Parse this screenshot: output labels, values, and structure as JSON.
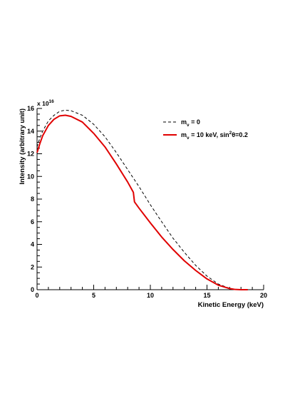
{
  "chart_data": {
    "type": "line",
    "xlabel": "Kinetic Energy (keV)",
    "ylabel": "Intensity (arbitrary unit)",
    "y_multiplier": {
      "base": "x 10",
      "exponent": "16"
    },
    "xlim": [
      0,
      20
    ],
    "ylim": [
      0,
      16
    ],
    "x_ticks": [
      "0",
      "5",
      "10",
      "15",
      "20"
    ],
    "y_ticks": [
      "0",
      "2",
      "4",
      "6",
      "8",
      "10",
      "12",
      "14",
      "16"
    ],
    "grid": false,
    "legend_position": "top-right",
    "legend": [
      {
        "id": "massless",
        "base": "m",
        "sub": "ν",
        "rest": " = 0"
      },
      {
        "id": "sterile",
        "base": "m",
        "sub": "ν",
        "rest1": " = 10 keV, sin",
        "sup": "2",
        "rest2": "θ=0.2"
      }
    ],
    "series": [
      {
        "id": "massless",
        "color": "#000000",
        "style": "dashed",
        "x": [
          0,
          0.25,
          0.5,
          1,
          1.5,
          2,
          2.5,
          3,
          4,
          5,
          6,
          7,
          8,
          8.6,
          9,
          10,
          11,
          12,
          13,
          14,
          15,
          16,
          17,
          17.5,
          18,
          18.6
        ],
        "y": [
          12.6,
          13.4,
          14.0,
          14.9,
          15.4,
          15.75,
          15.85,
          15.8,
          15.4,
          14.6,
          13.5,
          12.1,
          10.6,
          9.7,
          9.1,
          7.5,
          6.0,
          4.55,
          3.3,
          2.15,
          1.2,
          0.5,
          0.12,
          0.03,
          0.0,
          0.0
        ]
      },
      {
        "id": "sterile",
        "color": "#e00000",
        "style": "solid",
        "x": [
          0,
          0.25,
          0.5,
          1,
          1.5,
          2,
          2.5,
          3,
          4,
          5,
          6,
          7,
          8,
          8.5,
          8.6,
          9,
          10,
          11,
          12,
          13,
          14,
          15,
          16,
          17,
          17.5,
          18,
          18.6
        ],
        "y": [
          12.1,
          12.9,
          13.6,
          14.5,
          15.05,
          15.35,
          15.4,
          15.3,
          14.8,
          13.8,
          12.6,
          11.1,
          9.5,
          8.6,
          7.75,
          7.2,
          5.9,
          4.65,
          3.55,
          2.55,
          1.7,
          0.95,
          0.4,
          0.1,
          0.02,
          0.0,
          0.0
        ]
      }
    ]
  }
}
